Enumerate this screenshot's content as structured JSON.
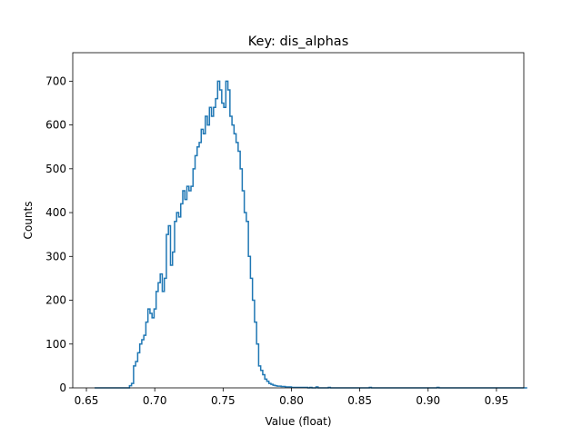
{
  "chart_data": {
    "type": "histogram",
    "title": "Key: dis_alphas",
    "xlabel": "Value (float)",
    "ylabel": "Counts",
    "xlim": [
      0.64,
      0.97
    ],
    "ylim": [
      0,
      765
    ],
    "xticks": [
      0.65,
      0.7,
      0.75,
      0.8,
      0.85,
      0.9,
      0.95
    ],
    "xtick_labels": [
      "0.65",
      "0.70",
      "0.75",
      "0.80",
      "0.85",
      "0.90",
      "0.95"
    ],
    "yticks": [
      0,
      100,
      200,
      300,
      400,
      500,
      600,
      700
    ],
    "ytick_labels": [
      "0",
      "100",
      "200",
      "300",
      "400",
      "500",
      "600",
      "700"
    ],
    "grid": false,
    "color": "#1f77b4",
    "bin_start": 0.656,
    "bin_width": 0.0015,
    "counts": [
      0,
      0,
      0,
      0,
      0,
      0,
      0,
      0,
      0,
      0,
      0,
      0,
      0,
      0,
      0,
      0,
      0,
      5,
      10,
      50,
      60,
      80,
      100,
      110,
      120,
      150,
      180,
      170,
      160,
      180,
      220,
      240,
      260,
      220,
      250,
      350,
      370,
      280,
      310,
      380,
      400,
      390,
      420,
      450,
      430,
      460,
      450,
      460,
      500,
      530,
      550,
      560,
      590,
      580,
      620,
      600,
      640,
      620,
      640,
      660,
      700,
      680,
      650,
      640,
      700,
      680,
      620,
      600,
      580,
      560,
      540,
      500,
      450,
      400,
      380,
      300,
      250,
      200,
      150,
      100,
      50,
      40,
      30,
      20,
      15,
      10,
      8,
      6,
      5,
      4,
      4,
      3,
      3,
      2,
      2,
      2,
      1,
      1,
      1,
      1,
      1,
      1,
      1,
      1,
      0,
      1,
      0,
      0,
      2,
      0,
      0,
      0,
      0,
      0,
      1,
      0,
      0,
      0,
      0,
      0,
      0,
      0,
      0,
      0,
      0,
      0,
      0,
      0,
      0,
      0,
      0,
      0,
      0,
      0,
      1,
      0,
      0,
      0,
      0,
      0,
      0,
      0,
      0,
      0,
      0,
      0,
      0,
      0,
      0,
      0,
      0,
      0,
      0,
      0,
      0,
      0,
      0,
      0,
      0,
      0,
      0,
      0,
      0,
      0,
      0,
      0,
      0,
      1,
      0,
      0,
      0,
      0,
      0,
      0,
      0,
      0,
      0,
      0,
      0,
      0,
      0,
      0,
      0,
      0,
      0,
      0,
      0,
      0,
      0,
      0,
      0,
      0,
      0,
      0,
      0,
      0,
      0,
      0,
      0,
      0,
      0,
      0,
      0,
      0,
      0,
      0,
      0,
      0,
      0,
      0,
      0
    ]
  }
}
